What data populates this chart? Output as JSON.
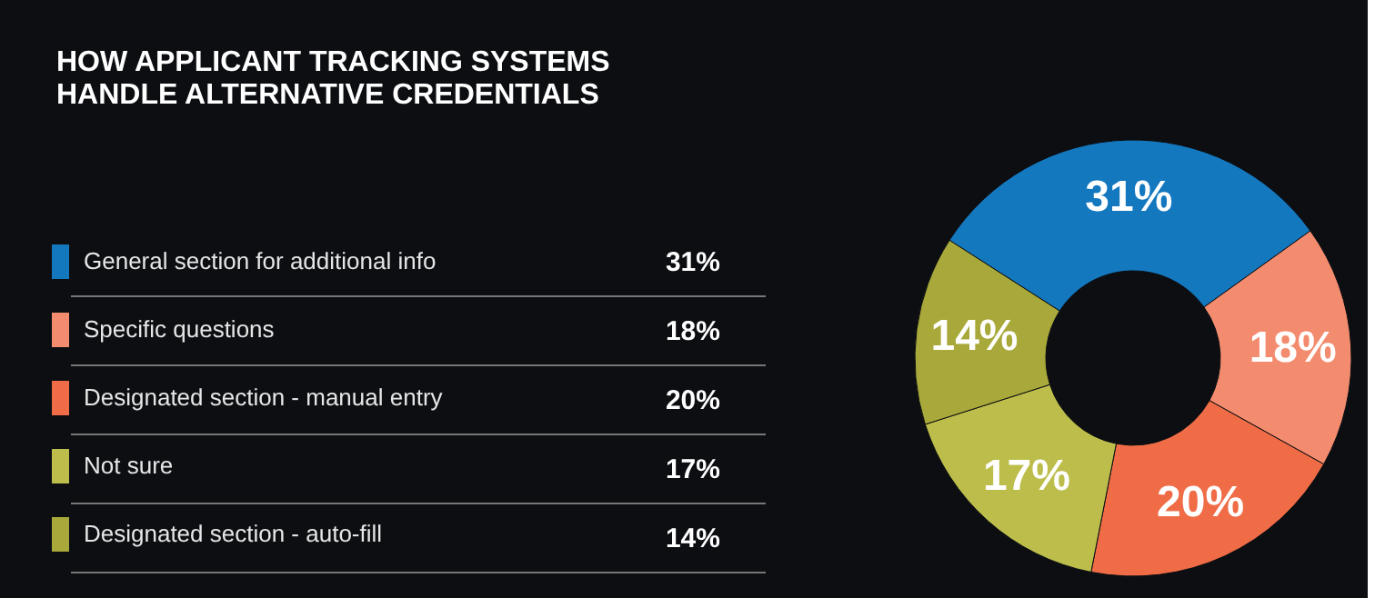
{
  "chart_data": {
    "type": "donut",
    "title": "HOW APPLICANT TRACKING SYSTEMS\nHANDLE ALTERNATIVE CREDENTIALS",
    "categories": [
      "General section for additional info",
      "Specific questions",
      "Designated section - manual entry",
      "Not sure",
      "Designated section - auto-fill"
    ],
    "values": [
      31,
      18,
      20,
      17,
      14
    ],
    "value_labels": [
      "31%",
      "18%",
      "20%",
      "17%",
      "14%"
    ],
    "colors": [
      "#1478bf",
      "#f38c6e",
      "#ef6c46",
      "#bdbd4c",
      "#a8a93a"
    ],
    "legend": "left"
  }
}
